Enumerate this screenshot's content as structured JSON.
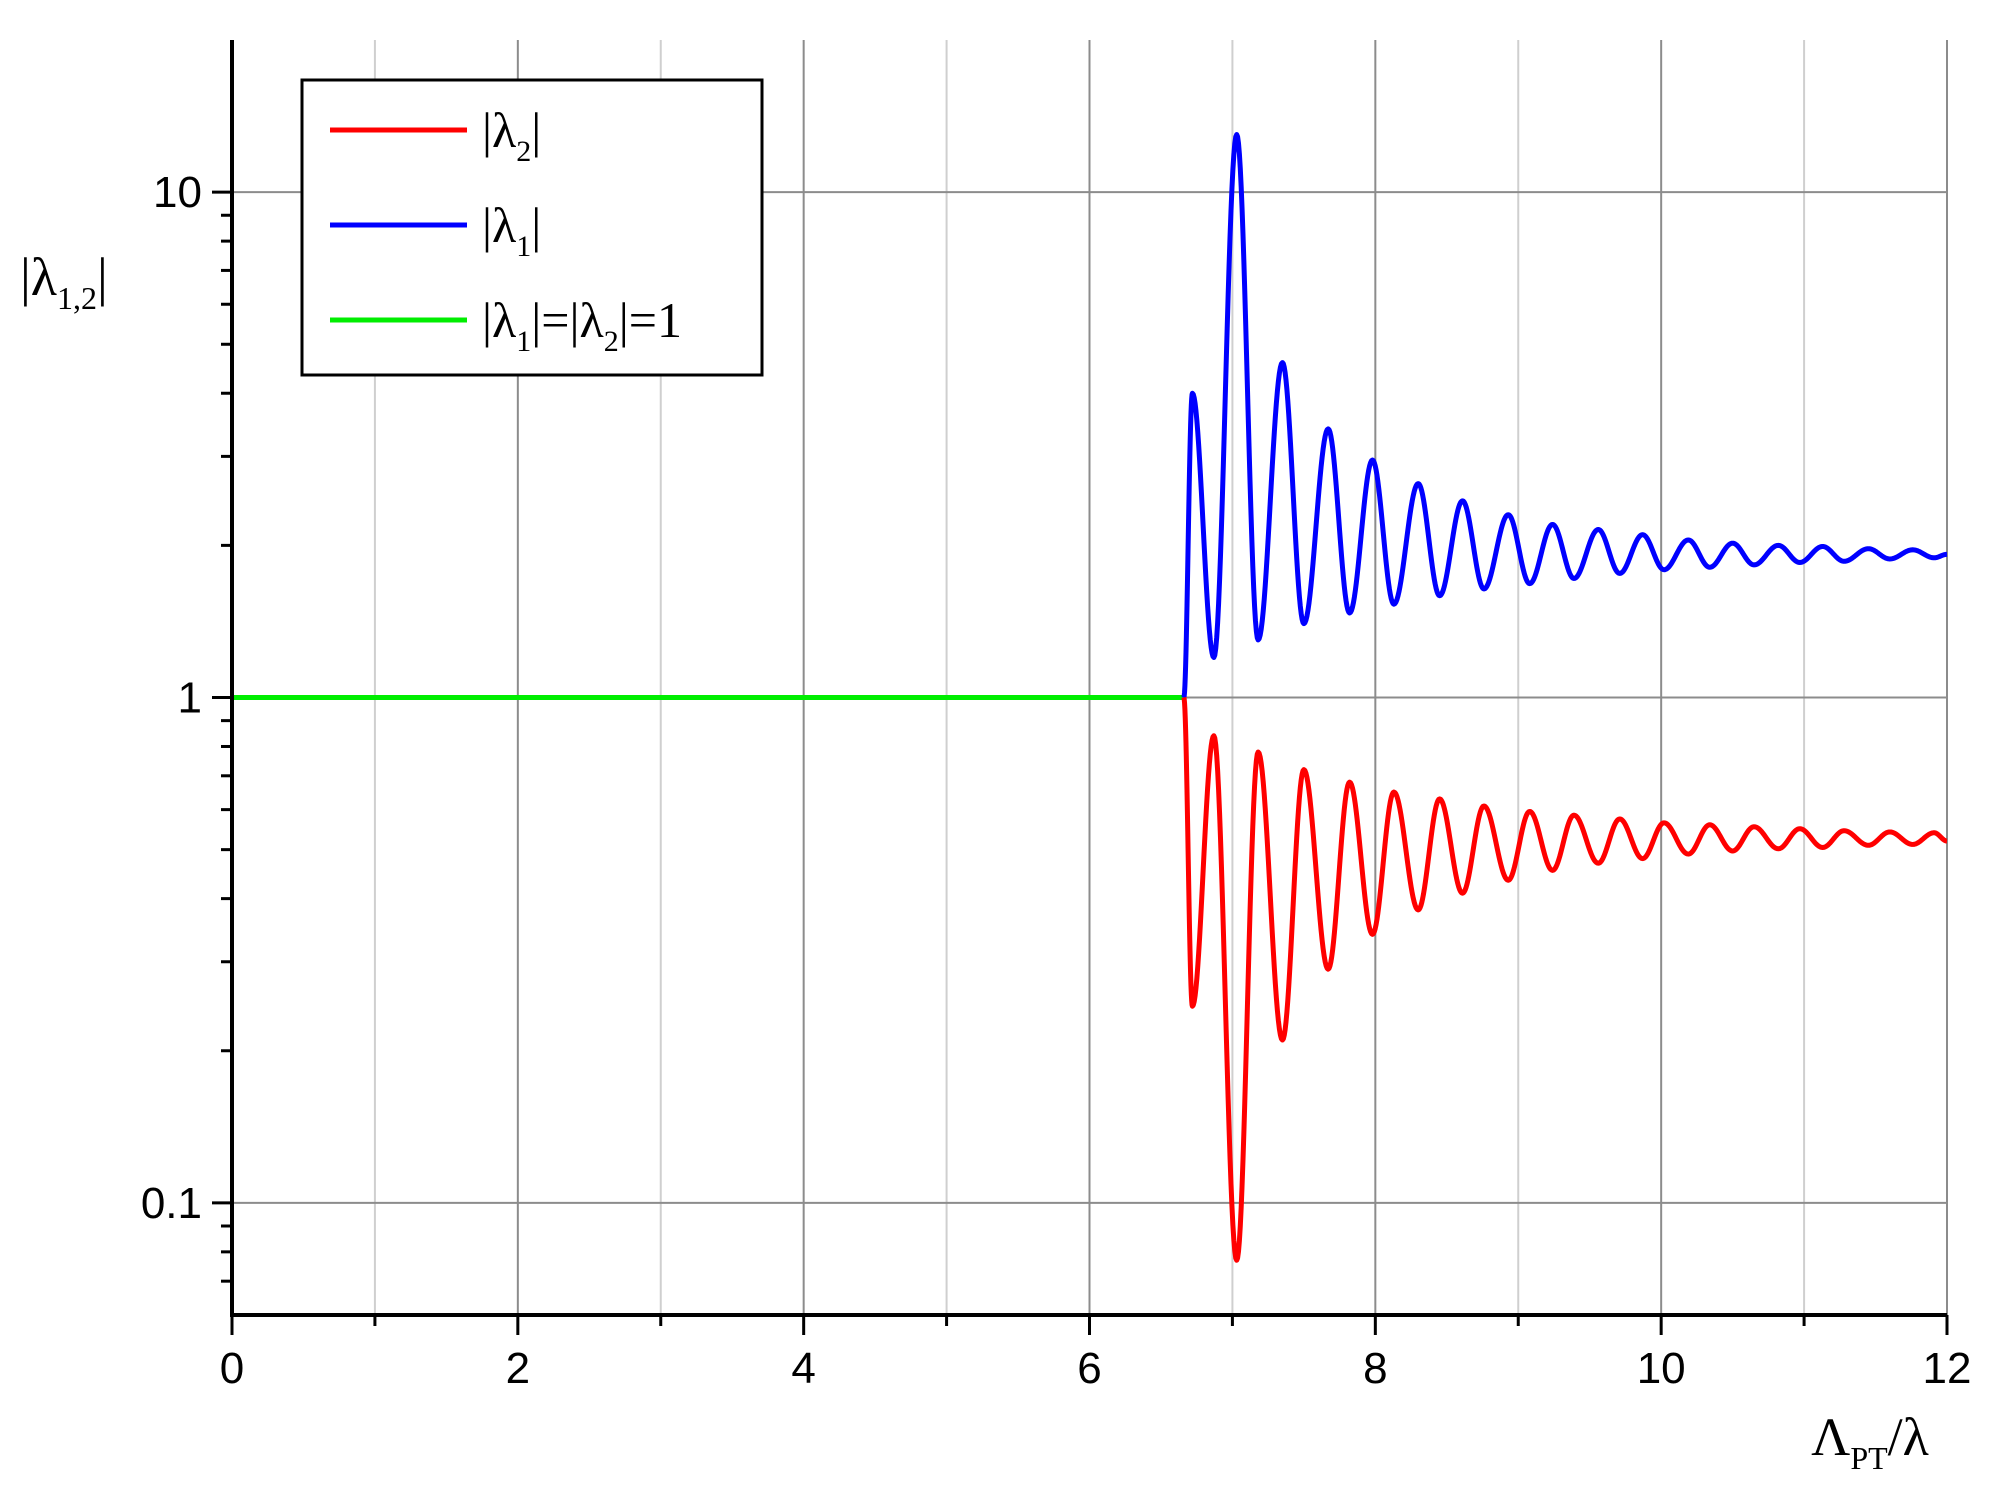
{
  "chart_data": {
    "type": "line",
    "title": "",
    "xlabel": {
      "main": "Λ",
      "sub": "PT",
      "tail": "/λ"
    },
    "ylabel": {
      "main": "|λ",
      "sub": "1,2",
      "tail": "|"
    },
    "xlim": [
      0,
      12
    ],
    "ylim": [
      0.06,
      20
    ],
    "yscale": "log",
    "xticks": [
      "0",
      "2",
      "4",
      "6",
      "8",
      "10",
      "12"
    ],
    "xminor_ticks": [
      1,
      3,
      5,
      7,
      9,
      11
    ],
    "yticks": [
      "0.1",
      "1",
      "10"
    ],
    "grid": true,
    "legend_position": "top-left",
    "colors": {
      "lambda2": "#ff0000",
      "lambda1": "#0000ff",
      "unity": "#00ee00"
    },
    "threshold_x": 6.66,
    "legend": [
      {
        "key": "lambda2",
        "parts": [
          [
            "|λ",
            ""
          ],
          [
            "2",
            "sub"
          ],
          [
            "|",
            ""
          ]
        ]
      },
      {
        "key": "lambda1",
        "parts": [
          [
            "|λ",
            ""
          ],
          [
            "1",
            "sub"
          ],
          [
            "|",
            ""
          ]
        ]
      },
      {
        "key": "unity",
        "parts": [
          [
            "|λ",
            ""
          ],
          [
            "1",
            "sub"
          ],
          [
            "|=|λ",
            ""
          ],
          [
            "2",
            "sub"
          ],
          [
            "|=1",
            ""
          ]
        ]
      }
    ],
    "series": [
      {
        "key": "unity",
        "x": [
          0,
          6.66
        ],
        "y": [
          1,
          1
        ]
      },
      {
        "key": "lambda1",
        "peaks_x": [
          6.72,
          7.03,
          7.35,
          7.67,
          7.98,
          8.3,
          8.61,
          8.93,
          9.24,
          9.56,
          9.87,
          10.19,
          10.5,
          10.82,
          11.13,
          11.45,
          11.76
        ],
        "peaks_y": [
          4.0,
          13.0,
          4.6,
          3.4,
          2.95,
          2.65,
          2.45,
          2.3,
          2.2,
          2.15,
          2.1,
          2.05,
          2.02,
          2.0,
          1.99,
          1.97,
          1.96
        ],
        "troughs_x": [
          6.87,
          7.18,
          7.5,
          7.82,
          8.13,
          8.45,
          8.76,
          9.08,
          9.39,
          9.71,
          10.02,
          10.34,
          10.65,
          10.97,
          11.28,
          11.6,
          11.91
        ],
        "troughs_y": [
          1.2,
          1.3,
          1.4,
          1.47,
          1.53,
          1.59,
          1.64,
          1.68,
          1.72,
          1.76,
          1.79,
          1.81,
          1.83,
          1.85,
          1.86,
          1.88,
          1.89
        ],
        "end_y": 1.92
      },
      {
        "key": "lambda2",
        "troughs_x": [
          6.72,
          7.03,
          7.35,
          7.67,
          7.98,
          8.3,
          8.61,
          8.93,
          9.24,
          9.56,
          9.87,
          10.19,
          10.5,
          10.82,
          11.13,
          11.45,
          11.76
        ],
        "troughs_y": [
          0.245,
          0.077,
          0.21,
          0.29,
          0.34,
          0.38,
          0.41,
          0.435,
          0.455,
          0.47,
          0.48,
          0.49,
          0.497,
          0.502,
          0.505,
          0.51,
          0.512
        ],
        "peaks_x": [
          6.87,
          7.18,
          7.5,
          7.82,
          8.13,
          8.45,
          8.76,
          9.08,
          9.39,
          9.71,
          10.02,
          10.34,
          10.65,
          10.97,
          11.28,
          11.6,
          11.91
        ],
        "peaks_y": [
          0.84,
          0.78,
          0.72,
          0.68,
          0.65,
          0.63,
          0.61,
          0.595,
          0.585,
          0.575,
          0.565,
          0.56,
          0.555,
          0.55,
          0.545,
          0.542,
          0.54
        ],
        "end_y": 0.52
      }
    ]
  }
}
